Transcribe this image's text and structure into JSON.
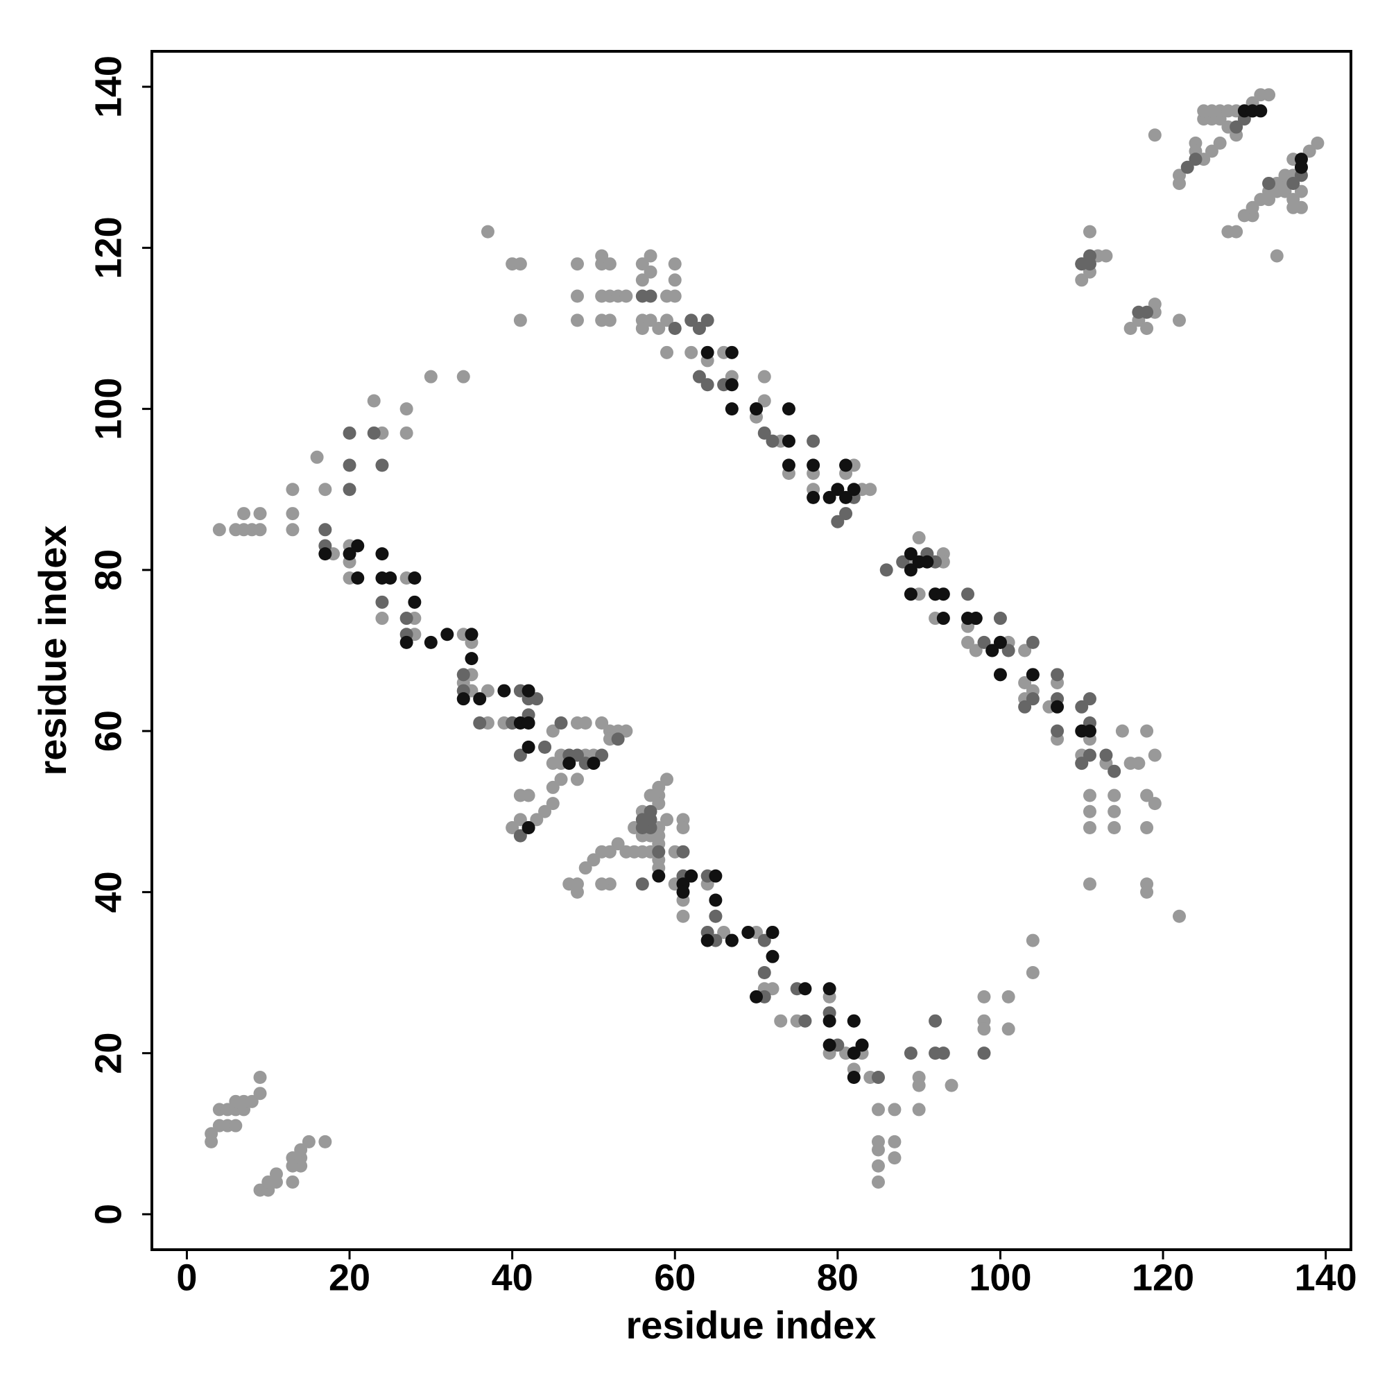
{
  "chart_data": {
    "type": "scatter",
    "xlabel": "residue index",
    "ylabel": "residue index",
    "xlim": [
      -4.3,
      143.1
    ],
    "ylim": [
      -4.4,
      144.4
    ],
    "xticks": [
      0,
      20,
      40,
      60,
      80,
      100,
      120,
      140
    ],
    "yticks": [
      0,
      20,
      40,
      60,
      80,
      100,
      120,
      140
    ],
    "series": [
      {
        "color": "#999999",
        "x": [
          3,
          3,
          4,
          4,
          5,
          5,
          6,
          6,
          6,
          7,
          7,
          8,
          9,
          9,
          9,
          10,
          10,
          11,
          11,
          13,
          13,
          13,
          14,
          14,
          14,
          15,
          17,
          4,
          6,
          7,
          7,
          8,
          9,
          9,
          13,
          13,
          13,
          16,
          17,
          20,
          20,
          20,
          18,
          23,
          24,
          27,
          27,
          30,
          34,
          37,
          40,
          41,
          41,
          48,
          48,
          48,
          51,
          51,
          51,
          51,
          52,
          52,
          52,
          53,
          54,
          56,
          56,
          56,
          56,
          57,
          57,
          57,
          58,
          59,
          59,
          59,
          60,
          60,
          60,
          62,
          63,
          64,
          66,
          67,
          71,
          71,
          70,
          73,
          74,
          77,
          77,
          81,
          82,
          83,
          84,
          89,
          90,
          90,
          92,
          93,
          93,
          96,
          96,
          97,
          99,
          100,
          101,
          103,
          103,
          103,
          104,
          106,
          107,
          107,
          111,
          110,
          110,
          111,
          111,
          111,
          111,
          113,
          114,
          114,
          114,
          115,
          116,
          117,
          118,
          118,
          118,
          118,
          118,
          119,
          119,
          122,
          101,
          101,
          104,
          104,
          98,
          98,
          98,
          94,
          90,
          90,
          90,
          87,
          87,
          87,
          85,
          85,
          85,
          85,
          85,
          84,
          83,
          82,
          81,
          79,
          79,
          75,
          73,
          71,
          72,
          72,
          70,
          66,
          65,
          64,
          62,
          61,
          60,
          58,
          58,
          59,
          57,
          56,
          55,
          56,
          57,
          56,
          57,
          58,
          58,
          58,
          58,
          58,
          55,
          54,
          53,
          52,
          51,
          50,
          49,
          48,
          47,
          48,
          52,
          51,
          58,
          59,
          61,
          61,
          60,
          61,
          35,
          35,
          37,
          37,
          39,
          40,
          40,
          41,
          41,
          42,
          43,
          44,
          45,
          45,
          45,
          46,
          46,
          46,
          47,
          48,
          48,
          49,
          49,
          50,
          51,
          52,
          52,
          53,
          54,
          44,
          45,
          28,
          28,
          27,
          24,
          34,
          35,
          34,
          119,
          122,
          122,
          110,
          110,
          111,
          111,
          112,
          113,
          116,
          117,
          118,
          119,
          119,
          122,
          124,
          125,
          125,
          126,
          126,
          127,
          127,
          128,
          129,
          130,
          131,
          132,
          133,
          128,
          129,
          130,
          131,
          131,
          132,
          133,
          133,
          134,
          134,
          135,
          135,
          135,
          136,
          136,
          136,
          136,
          137,
          137,
          137,
          138,
          139,
          134,
          128,
          129,
          127,
          126,
          125,
          124
        ],
        "values": [
          9,
          10,
          11,
          13,
          11,
          13,
          11,
          13,
          14,
          13,
          14,
          14,
          15,
          17,
          3,
          3,
          4,
          4,
          5,
          4,
          6,
          7,
          6,
          7,
          8,
          9,
          9,
          85,
          85,
          85,
          87,
          85,
          85,
          87,
          85,
          87,
          90,
          94,
          90,
          79,
          81,
          83,
          82,
          101,
          97,
          100,
          97,
          104,
          104,
          122,
          118,
          118,
          111,
          118,
          114,
          111,
          119,
          118,
          114,
          111,
          118,
          114,
          111,
          114,
          114,
          118,
          116,
          111,
          110,
          119,
          117,
          111,
          110,
          114,
          107,
          111,
          118,
          116,
          114,
          107,
          110,
          106,
          107,
          104,
          104,
          101,
          99,
          96,
          92,
          92,
          90,
          92,
          93,
          90,
          90,
          81,
          84,
          77,
          74,
          82,
          81,
          73,
          71,
          70,
          70,
          71,
          71,
          70,
          66,
          64,
          65,
          63,
          59,
          66,
          59,
          57,
          56,
          52,
          50,
          48,
          41,
          56,
          52,
          50,
          48,
          60,
          56,
          56,
          60,
          52,
          48,
          41,
          40,
          57,
          51,
          37,
          27,
          23,
          34,
          30,
          27,
          24,
          23,
          16,
          17,
          16,
          13,
          13,
          9,
          7,
          13,
          9,
          8,
          6,
          4,
          17,
          20,
          18,
          20,
          27,
          20,
          24,
          24,
          28,
          28,
          35,
          35,
          35,
          37,
          41,
          42,
          39,
          45,
          53,
          52,
          54,
          52,
          50,
          48,
          47,
          47,
          45,
          45,
          48,
          47,
          46,
          44,
          43,
          45,
          45,
          46,
          45,
          45,
          44,
          43,
          41,
          41,
          40,
          41,
          41,
          51,
          49,
          49,
          48,
          41,
          37,
          65,
          67,
          65,
          61,
          61,
          61,
          48,
          52,
          49,
          52,
          49,
          50,
          51,
          53,
          56,
          54,
          56,
          57,
          57,
          61,
          54,
          61,
          57,
          57,
          61,
          60,
          59,
          60,
          60,
          58,
          60,
          72,
          74,
          79,
          74,
          72,
          71,
          66,
          134,
          129,
          128,
          116,
          118,
          122,
          117,
          119,
          119,
          110,
          111,
          110,
          112,
          113,
          111,
          133,
          136,
          137,
          136,
          137,
          136,
          137,
          137,
          137,
          137,
          138,
          139,
          139,
          122,
          122,
          124,
          124,
          125,
          126,
          126,
          127,
          127,
          128,
          128,
          127,
          129,
          125,
          126,
          129,
          131,
          125,
          127,
          130,
          132,
          133,
          119,
          135,
          134,
          133,
          132,
          131,
          132
        ]
      },
      {
        "color": "#666666",
        "x": [
          17,
          17,
          20,
          20,
          20,
          23,
          24,
          24,
          27,
          27,
          34,
          34,
          41,
          42,
          41,
          41,
          42,
          44,
          46,
          48,
          51,
          49,
          63,
          64,
          60,
          62,
          56,
          57,
          63,
          64,
          66,
          70,
          71,
          72,
          77,
          80,
          81,
          82,
          88,
          86,
          91,
          92,
          92,
          96,
          97,
          98,
          100,
          101,
          104,
          104,
          103,
          104,
          107,
          107,
          107,
          110,
          111,
          111,
          111,
          113,
          114,
          110,
          56,
          58,
          61,
          61,
          64,
          65,
          64,
          65,
          67,
          71,
          71,
          71,
          75,
          76,
          79,
          82,
          80,
          83,
          85,
          92,
          92,
          93,
          98,
          89,
          43,
          42,
          40,
          47,
          53,
          36,
          57,
          57,
          57,
          56,
          56,
          130,
          131,
          129,
          136,
          137,
          133,
          118,
          117,
          110,
          111,
          111,
          123,
          124
        ],
        "values": [
          85,
          83,
          97,
          93,
          90,
          97,
          93,
          76,
          74,
          72,
          67,
          65,
          65,
          64,
          57,
          47,
          48,
          58,
          61,
          57,
          57,
          56,
          110,
          111,
          110,
          111,
          114,
          114,
          104,
          103,
          103,
          100,
          97,
          96,
          96,
          86,
          87,
          89,
          81,
          80,
          82,
          81,
          77,
          77,
          74,
          71,
          74,
          70,
          71,
          67,
          63,
          64,
          67,
          64,
          60,
          63,
          64,
          61,
          57,
          57,
          55,
          56,
          41,
          45,
          45,
          42,
          42,
          37,
          35,
          34,
          34,
          34,
          30,
          27,
          28,
          24,
          25,
          24,
          21,
          21,
          17,
          24,
          20,
          20,
          20,
          20,
          64,
          62,
          61,
          57,
          59,
          61,
          48,
          50,
          49,
          48,
          49,
          136,
          137,
          135,
          128,
          129,
          128,
          112,
          112,
          118,
          119,
          118,
          130,
          131
        ]
      },
      {
        "color": "#111111",
        "x": [
          17,
          20,
          21,
          21,
          24,
          24,
          25,
          28,
          28,
          27,
          30,
          32,
          35,
          35,
          34,
          36,
          39,
          42,
          41,
          42,
          42,
          47,
          50,
          42,
          58,
          61,
          61,
          62,
          65,
          65,
          64,
          67,
          69,
          72,
          72,
          70,
          76,
          79,
          79,
          79,
          82,
          82,
          83,
          82,
          64,
          67,
          67,
          67,
          70,
          74,
          74,
          74,
          77,
          77,
          79,
          80,
          81,
          81,
          82,
          89,
          89,
          90,
          91,
          89,
          92,
          93,
          93,
          96,
          97,
          100,
          99,
          100,
          104,
          107,
          110,
          111,
          130,
          131,
          132,
          137,
          137
        ],
        "values": [
          82,
          82,
          83,
          79,
          82,
          79,
          79,
          79,
          76,
          71,
          71,
          72,
          72,
          69,
          64,
          64,
          65,
          65,
          61,
          61,
          58,
          56,
          56,
          48,
          42,
          41,
          40,
          42,
          42,
          39,
          34,
          34,
          35,
          35,
          32,
          27,
          28,
          28,
          24,
          21,
          20,
          17,
          21,
          24,
          107,
          107,
          103,
          100,
          100,
          100,
          96,
          93,
          93,
          89,
          89,
          90,
          93,
          89,
          90,
          80,
          82,
          81,
          81,
          77,
          77,
          77,
          74,
          74,
          74,
          71,
          70,
          67,
          67,
          63,
          60,
          60,
          137,
          137,
          137,
          131,
          130
        ]
      }
    ]
  }
}
